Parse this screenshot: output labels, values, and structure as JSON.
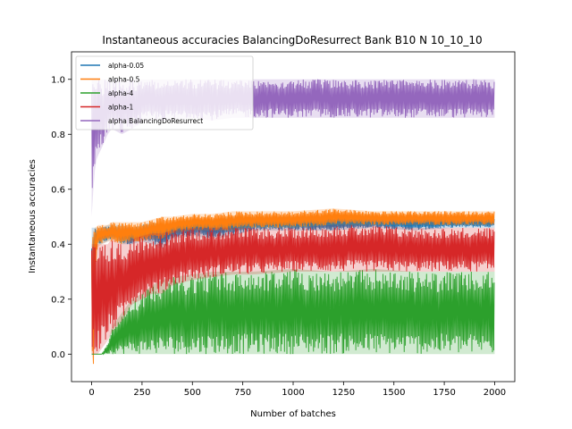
{
  "chart_data": {
    "type": "line",
    "title": "Instantaneous accuracies BalancingDoResurrect Bank B10 N 10_10_10",
    "xlabel": "Number of batches",
    "ylabel": "Instantaneous accuracies",
    "xlim": [
      -100,
      2100
    ],
    "ylim": [
      -0.1,
      1.1
    ],
    "xticks": [
      0,
      250,
      500,
      750,
      1000,
      1250,
      1500,
      1750,
      2000
    ],
    "yticks": [
      0.0,
      0.2,
      0.4,
      0.6,
      0.8,
      1.0
    ],
    "xtick_labels": [
      "0",
      "250",
      "500",
      "750",
      "1000",
      "1250",
      "1500",
      "1750",
      "2000"
    ],
    "ytick_labels": [
      "0.0",
      "0.2",
      "0.4",
      "0.6",
      "0.8",
      "1.0"
    ],
    "grid": false,
    "legend_position": "top-left",
    "series": [
      {
        "name": "alpha-0.05",
        "color": "#1f77b4",
        "x": [
          0,
          10,
          20,
          30,
          50,
          80,
          100,
          150,
          200,
          250,
          300,
          350,
          400,
          500,
          600,
          700,
          800,
          1000,
          1200,
          1400,
          1600,
          1800,
          2000
        ],
        "low": [
          0.0,
          0.3,
          0.38,
          0.4,
          0.4,
          0.41,
          0.42,
          0.4,
          0.4,
          0.41,
          0.4,
          0.38,
          0.42,
          0.43,
          0.42,
          0.43,
          0.45,
          0.45,
          0.45,
          0.46,
          0.45,
          0.46,
          0.46
        ],
        "high": [
          0.46,
          0.46,
          0.46,
          0.46,
          0.46,
          0.47,
          0.47,
          0.47,
          0.46,
          0.47,
          0.48,
          0.47,
          0.48,
          0.49,
          0.49,
          0.5,
          0.5,
          0.5,
          0.5,
          0.5,
          0.5,
          0.5,
          0.5
        ]
      },
      {
        "name": "alpha-0.5",
        "color": "#ff7f0e",
        "x": [
          0,
          10,
          20,
          30,
          50,
          80,
          100,
          150,
          200,
          250,
          300,
          350,
          400,
          500,
          600,
          700,
          800,
          1000,
          1200,
          1400,
          1600,
          1800,
          2000
        ],
        "low": [
          0.0,
          -0.05,
          0.3,
          0.39,
          0.4,
          0.41,
          0.41,
          0.4,
          0.41,
          0.41,
          0.42,
          0.42,
          0.44,
          0.45,
          0.45,
          0.45,
          0.46,
          0.46,
          0.47,
          0.47,
          0.47,
          0.47,
          0.47
        ],
        "high": [
          0.4,
          0.46,
          0.46,
          0.47,
          0.47,
          0.47,
          0.48,
          0.48,
          0.48,
          0.48,
          0.49,
          0.5,
          0.5,
          0.51,
          0.51,
          0.52,
          0.52,
          0.52,
          0.53,
          0.52,
          0.52,
          0.52,
          0.52
        ]
      },
      {
        "name": "alpha-4",
        "color": "#2ca02c",
        "x": [
          0,
          10,
          20,
          30,
          50,
          80,
          100,
          150,
          200,
          250,
          300,
          350,
          400,
          500,
          600,
          700,
          800,
          1000,
          1200,
          1400,
          1600,
          1800,
          2000
        ],
        "low": [
          0.0,
          0.0,
          0.0,
          0.0,
          0.0,
          0.0,
          0.0,
          0.0,
          0.0,
          0.0,
          0.0,
          0.0,
          0.0,
          0.0,
          0.0,
          0.0,
          0.0,
          0.0,
          0.0,
          0.0,
          0.0,
          0.0,
          0.0
        ],
        "high": [
          0.0,
          0.0,
          0.0,
          0.0,
          0.0,
          0.04,
          0.1,
          0.15,
          0.2,
          0.22,
          0.25,
          0.27,
          0.28,
          0.29,
          0.3,
          0.3,
          0.3,
          0.31,
          0.3,
          0.31,
          0.3,
          0.3,
          0.3
        ]
      },
      {
        "name": "alpha-1",
        "color": "#d62728",
        "x": [
          0,
          10,
          20,
          30,
          50,
          80,
          100,
          150,
          200,
          250,
          300,
          350,
          400,
          500,
          600,
          700,
          800,
          1000,
          1200,
          1400,
          1600,
          1800,
          2000
        ],
        "low": [
          0.0,
          0.0,
          0.0,
          0.0,
          0.02,
          0.05,
          0.08,
          0.12,
          0.18,
          0.2,
          0.22,
          0.22,
          0.25,
          0.27,
          0.28,
          0.29,
          0.29,
          0.3,
          0.3,
          0.3,
          0.3,
          0.3,
          0.3
        ],
        "high": [
          0.4,
          0.4,
          0.4,
          0.4,
          0.4,
          0.4,
          0.42,
          0.4,
          0.42,
          0.43,
          0.44,
          0.44,
          0.45,
          0.46,
          0.46,
          0.46,
          0.46,
          0.46,
          0.47,
          0.47,
          0.46,
          0.46,
          0.46
        ]
      },
      {
        "name": "alpha BalancingDoResurrect",
        "color": "#9467bd",
        "x": [
          0,
          10,
          20,
          30,
          50,
          80,
          100,
          150,
          200,
          250,
          300,
          350,
          400,
          500,
          600,
          700,
          800,
          1000,
          1200,
          1400,
          1600,
          1800,
          2000
        ],
        "low": [
          0.5,
          0.62,
          0.7,
          0.72,
          0.75,
          0.8,
          0.82,
          0.8,
          0.82,
          0.84,
          0.85,
          0.85,
          0.85,
          0.86,
          0.85,
          0.86,
          0.86,
          0.86,
          0.86,
          0.86,
          0.86,
          0.86,
          0.86
        ],
        "high": [
          1.0,
          1.0,
          1.0,
          1.0,
          1.0,
          1.0,
          1.0,
          1.0,
          1.0,
          1.0,
          1.0,
          1.0,
          1.0,
          1.0,
          1.0,
          1.0,
          1.0,
          1.0,
          1.0,
          1.0,
          1.0,
          1.0,
          1.0
        ]
      }
    ]
  }
}
